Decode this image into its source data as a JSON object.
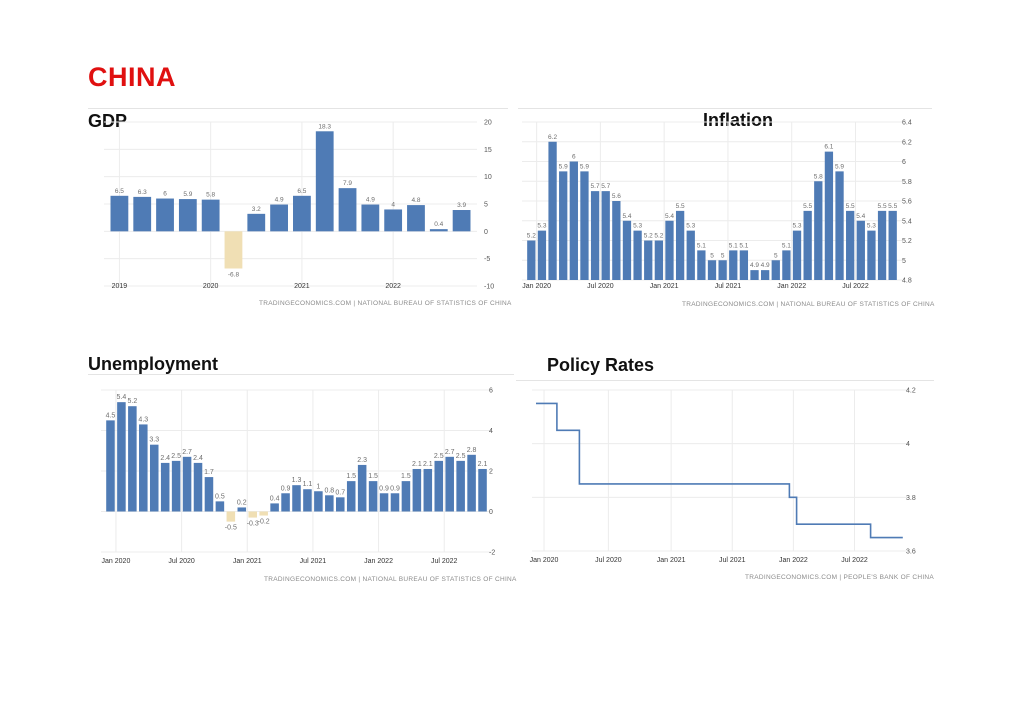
{
  "page": {
    "title": "CHINA"
  },
  "colors": {
    "title": "#e01010",
    "bar": "#4f7bb5",
    "negative": "#f0dfb4",
    "line": "#4f7bb5",
    "grid": "#ececec",
    "label": "#6e6e6e"
  },
  "chart_data": [
    {
      "id": "gdp",
      "type": "bar",
      "title": "GDP",
      "source": "TRADINGECONOMICS.COM | NATIONAL BUREAU OF STATISTICS OF CHINA",
      "values": [
        6.5,
        6.3,
        6,
        5.9,
        5.8,
        -6.8,
        3.2,
        4.9,
        6.5,
        18.3,
        7.9,
        4.9,
        4,
        4.8,
        0.4,
        3.9
      ],
      "labels": [
        "6.5",
        "6.3",
        "6",
        "5.9",
        "5.8",
        "-6.8",
        "3.2",
        "4.9",
        "6.5",
        "18.3",
        "7.9",
        "4.9",
        "4",
        "4.8",
        "0.4",
        "3.9"
      ],
      "ylim": [
        -10,
        20
      ],
      "yticks": [
        20,
        15,
        10,
        5,
        0,
        -5,
        -10
      ],
      "xticks": [
        {
          "label": "2019",
          "pos": 0.5
        },
        {
          "label": "2020",
          "pos": 4.5
        },
        {
          "label": "2021",
          "pos": 8.5
        },
        {
          "label": "2022",
          "pos": 12.5
        }
      ]
    },
    {
      "id": "inflation",
      "type": "bar",
      "title": "Inflation",
      "source": "TRADINGECONOMICS.COM | NATIONAL BUREAU OF STATISTICS OF CHINA",
      "values": [
        5.2,
        5.3,
        6.2,
        5.9,
        6,
        5.9,
        5.7,
        5.7,
        5.6,
        5.4,
        5.3,
        5.2,
        5.2,
        5.4,
        5.5,
        5.3,
        5.1,
        5,
        5,
        5.1,
        5.1,
        4.9,
        4.9,
        5,
        5.1,
        5.3,
        5.5,
        5.8,
        6.1,
        5.9,
        5.5,
        5.4,
        5.3,
        5.5,
        5.5
      ],
      "labels": [
        "5.2",
        "5.3",
        "6.2",
        "5.9",
        "6",
        "5.9",
        "5.7",
        "5.7",
        "5.6",
        "5.4",
        "5.3",
        "5.2",
        "5.2",
        "5.4",
        "5.5",
        "5.3",
        "5.1",
        "5",
        "5",
        "5.1",
        "5.1",
        "4.9",
        "4.9",
        "5",
        "5.1",
        "5.3",
        "5.5",
        "5.8",
        "6.1",
        "5.9",
        "5.5",
        "5.4",
        "5.3",
        "5.5",
        "5.5"
      ],
      "ylim": [
        4.8,
        6.4
      ],
      "yticks": [
        6.4,
        6.2,
        6,
        5.8,
        5.6,
        5.4,
        5.2,
        5,
        4.8
      ],
      "xticks": [
        {
          "label": "Jan 2020",
          "pos": 1
        },
        {
          "label": "Jul 2020",
          "pos": 7
        },
        {
          "label": "Jan 2021",
          "pos": 13
        },
        {
          "label": "Jul 2021",
          "pos": 19
        },
        {
          "label": "Jan 2022",
          "pos": 25
        },
        {
          "label": "Jul 2022",
          "pos": 31
        }
      ]
    },
    {
      "id": "unemployment",
      "type": "bar",
      "title": "Unemployment",
      "source": "TRADINGECONOMICS.COM | NATIONAL BUREAU OF STATISTICS OF CHINA",
      "values": [
        4.5,
        5.4,
        5.2,
        4.3,
        3.3,
        2.4,
        2.5,
        2.7,
        2.4,
        1.7,
        0.5,
        -0.5,
        0.2,
        -0.3,
        -0.2,
        0.4,
        0.9,
        1.3,
        1.1,
        1,
        0.8,
        0.7,
        1.5,
        2.3,
        1.5,
        0.9,
        0.9,
        1.5,
        2.1,
        2.1,
        2.5,
        2.7,
        2.5,
        2.8,
        2.1
      ],
      "labels": [
        "4.5",
        "5.4",
        "5.2",
        "4.3",
        "3.3",
        "2.4",
        "2.5",
        "2.7",
        "2.4",
        "1.7",
        "0.5",
        "-0.5",
        "0.2",
        "-0.3",
        "-0.2",
        "0.4",
        "0.9",
        "1.3",
        "1.1",
        "1",
        "0.8",
        "0.7",
        "1.5",
        "2.3",
        "1.5",
        "0.9",
        "0.9",
        "1.5",
        "2.1",
        "2.1",
        "2.5",
        "2.7",
        "2.5",
        "2.8",
        "2.1"
      ],
      "ylim": [
        -2,
        6
      ],
      "yticks": [
        6,
        4,
        2,
        0,
        -2
      ],
      "xticks": [
        {
          "label": "Jan 2020",
          "pos": 1
        },
        {
          "label": "Jul 2020",
          "pos": 7
        },
        {
          "label": "Jan 2021",
          "pos": 13
        },
        {
          "label": "Jul 2021",
          "pos": 19
        },
        {
          "label": "Jan 2022",
          "pos": 25
        },
        {
          "label": "Jul 2022",
          "pos": 31
        }
      ]
    },
    {
      "id": "policy",
      "type": "line",
      "title": "Policy Rates",
      "source": "TRADINGECONOMICS.COM | PEOPLE'S BANK OF CHINA",
      "x": [
        0,
        2.6,
        2.6,
        5.4,
        5.4,
        31.5,
        31.5,
        32.4,
        32.4,
        41.6,
        41.6,
        45.6
      ],
      "y": [
        4.15,
        4.15,
        4.05,
        4.05,
        3.85,
        3.85,
        3.8,
        3.8,
        3.7,
        3.7,
        3.65,
        3.65
      ],
      "xlim": [
        0,
        46
      ],
      "ylim": [
        3.6,
        4.2
      ],
      "yticks": [
        4.2,
        4,
        3.8,
        3.6
      ],
      "xticks": [
        {
          "label": "Jan 2020",
          "pos": 1
        },
        {
          "label": "Jul 2020",
          "pos": 9
        },
        {
          "label": "Jan 2021",
          "pos": 16.8
        },
        {
          "label": "Jul 2021",
          "pos": 24.4
        },
        {
          "label": "Jan 2022",
          "pos": 32
        },
        {
          "label": "Jul 2022",
          "pos": 39.6
        }
      ]
    }
  ]
}
